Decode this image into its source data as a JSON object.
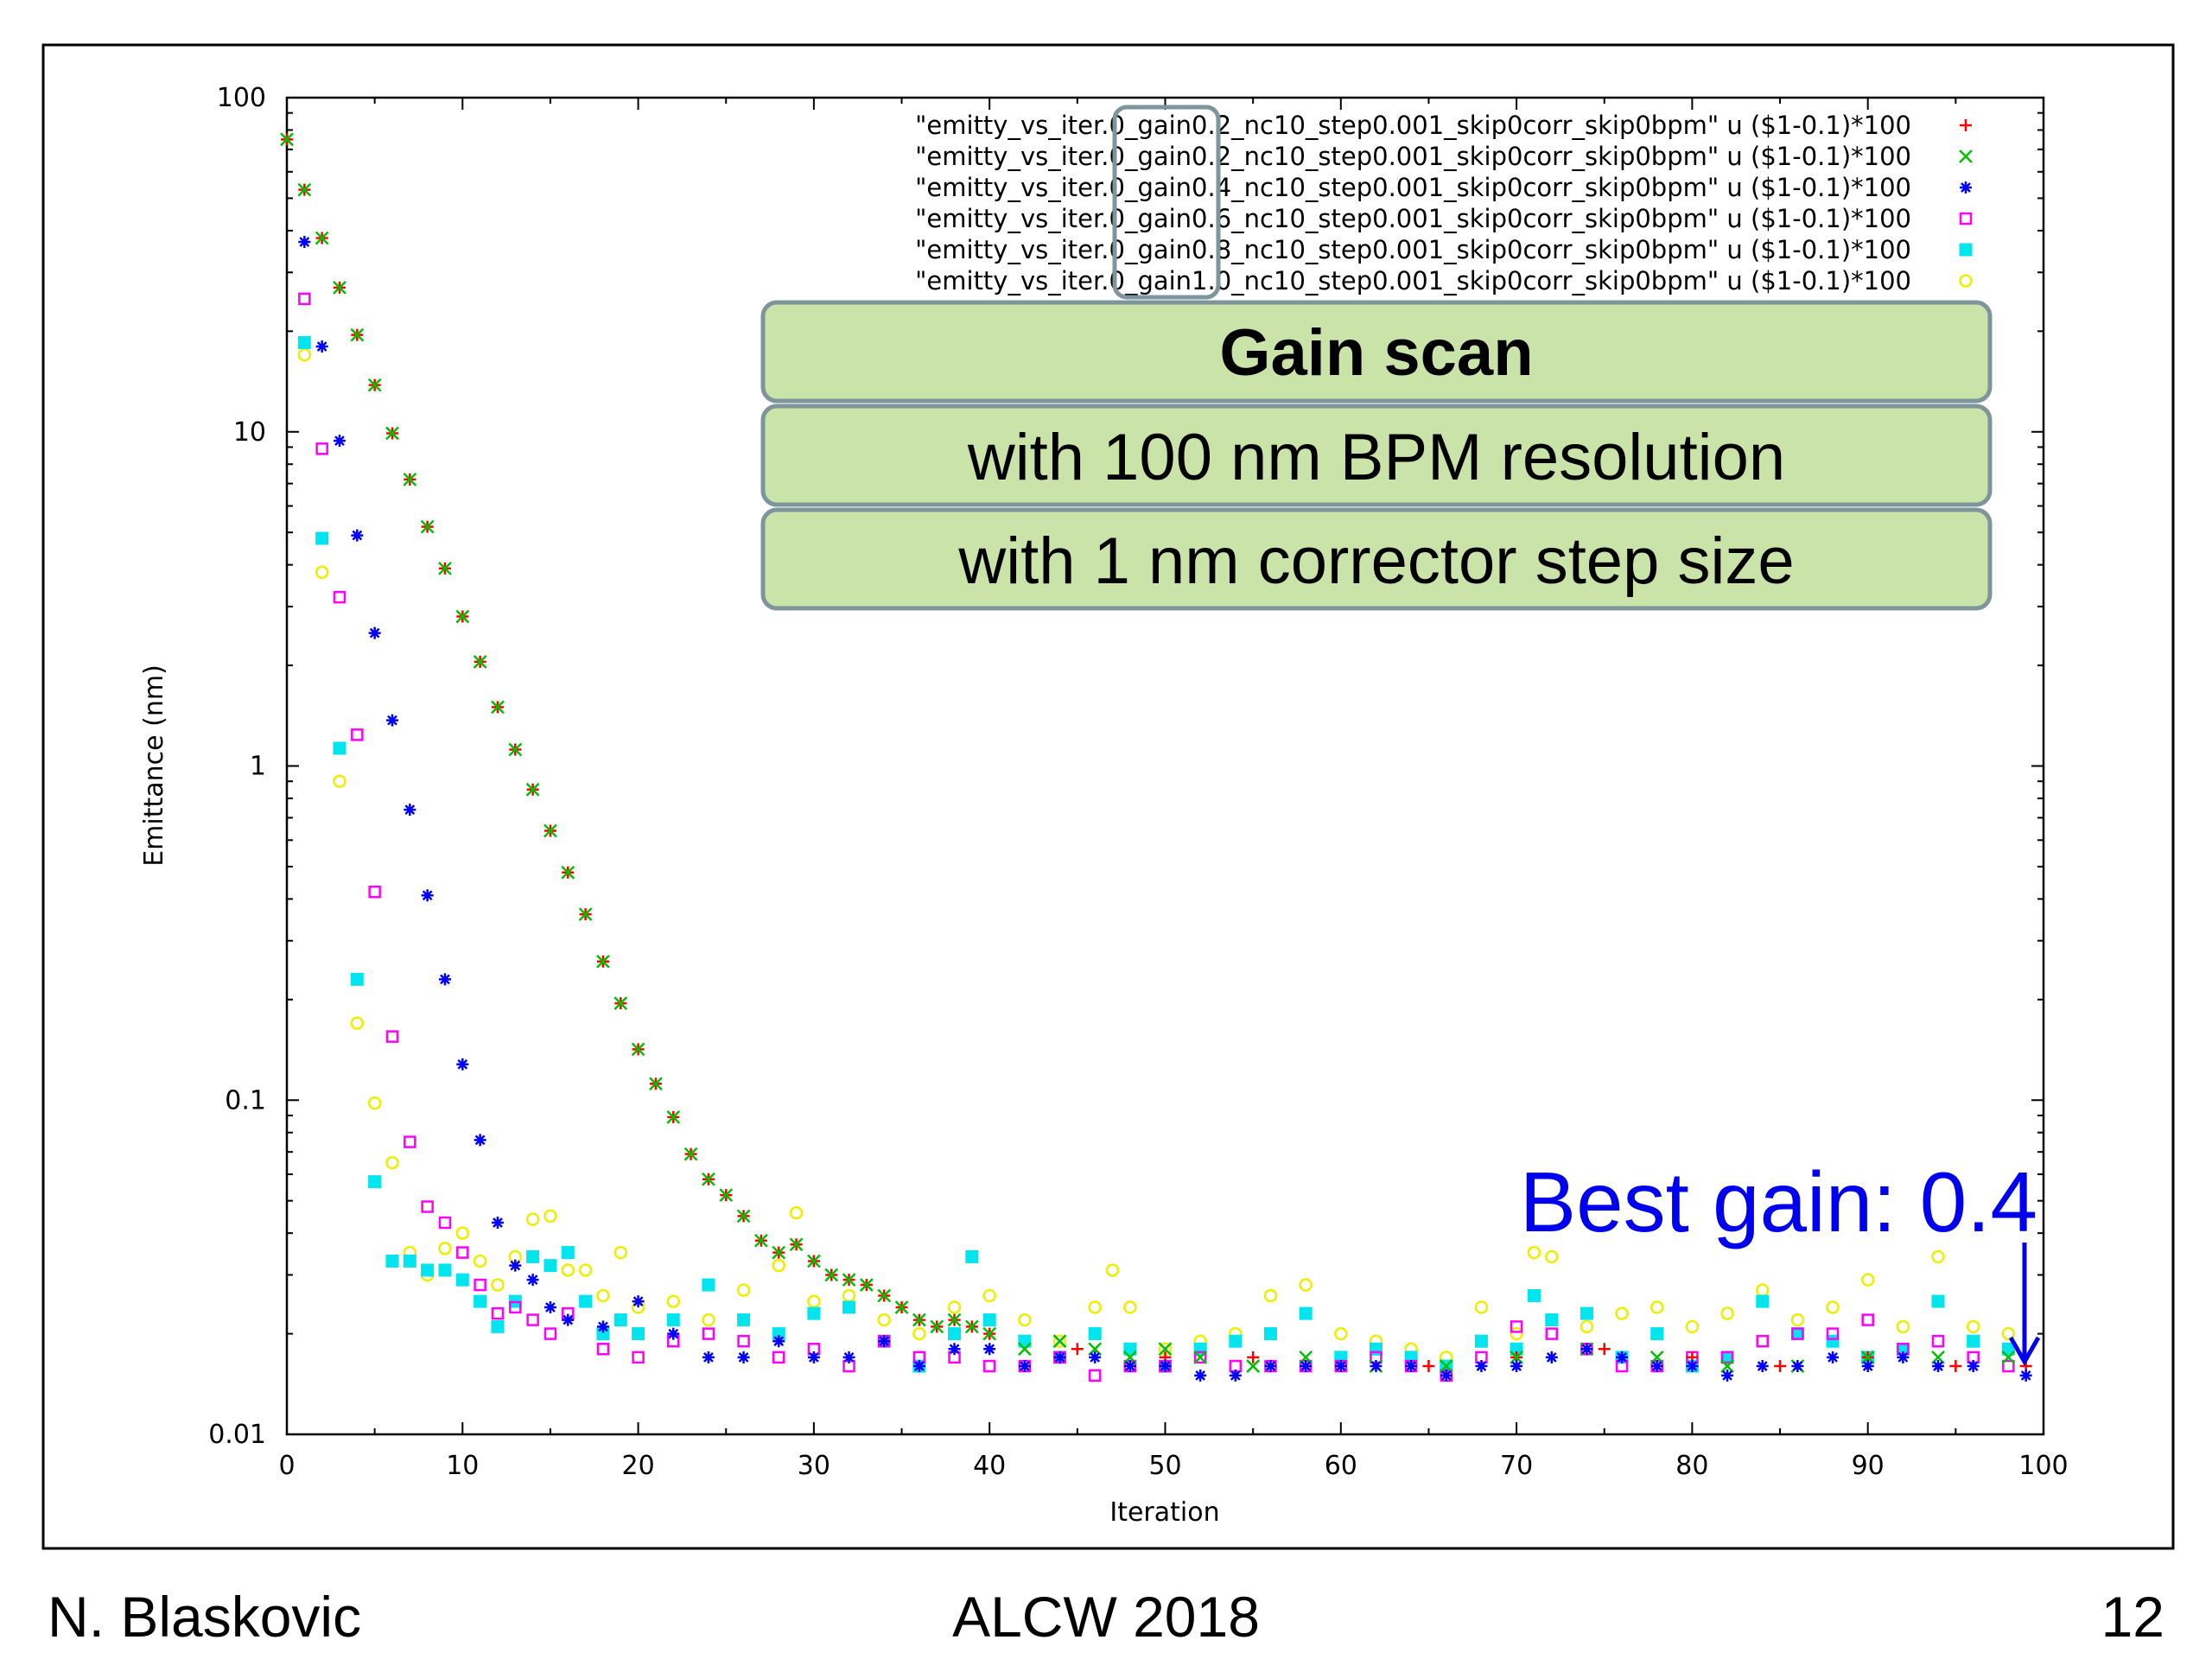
{
  "slide": {
    "author": "N. Blaskovic",
    "event": "ALCW 2018",
    "page_number": "12"
  },
  "callout_boxes": [
    "Gain scan",
    "with 100 nm BPM resolution",
    "with 1 nm corrector step size"
  ],
  "annotation": {
    "text": "Best gain: 0.4",
    "color": "#0000ee"
  },
  "colors": {
    "box_fill": "#c9e3a8",
    "box_border": "#7f959c",
    "highlight_border": "#7f959c"
  },
  "chart_data": {
    "type": "scatter",
    "xlabel": "Iteration",
    "ylabel": "Emittance (nm)",
    "xlim": [
      0,
      100
    ],
    "ylim": [
      0.01,
      100
    ],
    "y_scale": "log",
    "x_ticks": [
      "0",
      "10",
      "20",
      "30",
      "40",
      "50",
      "60",
      "70",
      "80",
      "90",
      "100"
    ],
    "y_ticks": [
      "0.01",
      "0.1",
      "1",
      "10",
      "100"
    ],
    "legend_position": "top-right",
    "series": [
      {
        "name": "\"emitty_vs_iter.0_gain0.2_nc10_step0.001_skip0corr_skip0bpm\" u ($1-0.1)*100",
        "marker": "plus",
        "color": "#ff0000",
        "x": [
          0,
          1,
          2,
          3,
          4,
          5,
          6,
          7,
          8,
          9,
          10,
          11,
          12,
          13,
          14,
          15,
          16,
          17,
          18,
          19,
          20,
          21,
          22,
          23,
          24,
          25,
          26,
          27,
          28,
          29,
          30,
          31,
          32,
          33,
          34,
          35,
          36,
          37,
          38,
          39,
          40,
          45,
          50,
          55,
          60,
          65,
          70,
          75,
          80,
          85,
          90,
          95,
          99
        ],
        "y": [
          75,
          53,
          38,
          27,
          19.5,
          13.8,
          9.9,
          7.2,
          5.2,
          3.9,
          2.8,
          2.05,
          1.5,
          1.12,
          0.85,
          0.64,
          0.48,
          0.36,
          0.26,
          0.195,
          0.142,
          0.112,
          0.089,
          0.069,
          0.058,
          0.052,
          0.045,
          0.038,
          0.035,
          0.037,
          0.033,
          0.03,
          0.029,
          0.028,
          0.026,
          0.024,
          0.022,
          0.021,
          0.022,
          0.021,
          0.02,
          0.018,
          0.017,
          0.017,
          0.016,
          0.016,
          0.017,
          0.018,
          0.017,
          0.016,
          0.017,
          0.016,
          0.016
        ]
      },
      {
        "name": "\"emitty_vs_iter.0_gain0.2_nc10_step0.001_skip0corr_skip0bpm\" u ($1-0.1)*100",
        "marker": "cross",
        "color": "#00c000",
        "x": [
          0,
          1,
          2,
          3,
          4,
          5,
          6,
          7,
          8,
          9,
          10,
          11,
          12,
          13,
          14,
          15,
          16,
          17,
          18,
          19,
          20,
          21,
          22,
          23,
          24,
          25,
          26,
          27,
          28,
          29,
          30,
          31,
          32,
          33,
          34,
          35,
          36,
          37,
          38,
          39,
          40,
          42,
          44,
          46,
          48,
          50,
          52,
          55,
          58,
          62,
          66,
          70,
          74,
          78,
          82,
          86,
          90,
          94,
          98
        ],
        "y": [
          75,
          53,
          38,
          27,
          19.5,
          13.8,
          9.9,
          7.2,
          5.2,
          3.9,
          2.8,
          2.05,
          1.5,
          1.12,
          0.85,
          0.64,
          0.48,
          0.36,
          0.26,
          0.195,
          0.142,
          0.112,
          0.089,
          0.069,
          0.058,
          0.052,
          0.045,
          0.038,
          0.035,
          0.037,
          0.033,
          0.03,
          0.029,
          0.028,
          0.026,
          0.024,
          0.022,
          0.021,
          0.022,
          0.021,
          0.02,
          0.018,
          0.019,
          0.018,
          0.017,
          0.018,
          0.017,
          0.016,
          0.017,
          0.016,
          0.016,
          0.017,
          0.018,
          0.017,
          0.016,
          0.016,
          0.017,
          0.017,
          0.017
        ]
      },
      {
        "name": "\"emitty_vs_iter.0_gain0.4_nc10_step0.001_skip0corr_skip0bpm\" u ($1-0.1)*100",
        "marker": "star",
        "color": "#0000ff",
        "x": [
          1,
          2,
          3,
          4,
          5,
          6,
          7,
          8,
          9,
          10,
          11,
          12,
          13,
          14,
          15,
          16,
          18,
          20,
          22,
          24,
          26,
          28,
          30,
          32,
          34,
          36,
          38,
          40,
          42,
          44,
          46,
          48,
          50,
          52,
          54,
          56,
          58,
          60,
          62,
          64,
          66,
          68,
          70,
          72,
          74,
          76,
          78,
          80,
          82,
          84,
          86,
          88,
          90,
          92,
          94,
          96,
          99
        ],
        "y": [
          37,
          18,
          9.4,
          4.9,
          2.5,
          1.37,
          0.74,
          0.41,
          0.23,
          0.128,
          0.076,
          0.043,
          0.032,
          0.029,
          0.024,
          0.022,
          0.021,
          0.025,
          0.02,
          0.017,
          0.017,
          0.019,
          0.017,
          0.017,
          0.019,
          0.016,
          0.018,
          0.018,
          0.016,
          0.017,
          0.017,
          0.016,
          0.016,
          0.015,
          0.015,
          0.016,
          0.016,
          0.016,
          0.016,
          0.016,
          0.015,
          0.016,
          0.016,
          0.017,
          0.018,
          0.017,
          0.016,
          0.016,
          0.015,
          0.016,
          0.016,
          0.017,
          0.016,
          0.017,
          0.016,
          0.016,
          0.015
        ]
      },
      {
        "name": "\"emitty_vs_iter.0_gain0.6_nc10_step0.001_skip0corr_skip0bpm\" u ($1-0.1)*100",
        "marker": "open-square",
        "color": "#ff00ff",
        "x": [
          1,
          2,
          3,
          4,
          5,
          6,
          7,
          8,
          9,
          10,
          11,
          12,
          13,
          14,
          15,
          16,
          18,
          20,
          22,
          24,
          26,
          28,
          30,
          32,
          34,
          36,
          38,
          40,
          42,
          44,
          46,
          48,
          50,
          52,
          54,
          56,
          58,
          60,
          62,
          64,
          66,
          68,
          70,
          72,
          74,
          76,
          78,
          80,
          82,
          84,
          86,
          88,
          90,
          92,
          94,
          96,
          98
        ],
        "y": [
          25,
          8.9,
          3.2,
          1.24,
          0.42,
          0.155,
          0.075,
          0.048,
          0.043,
          0.035,
          0.028,
          0.023,
          0.024,
          0.022,
          0.02,
          0.023,
          0.018,
          0.017,
          0.019,
          0.02,
          0.019,
          0.017,
          0.018,
          0.016,
          0.019,
          0.017,
          0.017,
          0.016,
          0.016,
          0.017,
          0.015,
          0.016,
          0.016,
          0.017,
          0.016,
          0.016,
          0.016,
          0.016,
          0.017,
          0.016,
          0.015,
          0.017,
          0.021,
          0.02,
          0.018,
          0.016,
          0.016,
          0.017,
          0.017,
          0.019,
          0.02,
          0.02,
          0.022,
          0.018,
          0.019,
          0.017,
          0.016
        ]
      },
      {
        "name": "\"emitty_vs_iter.0_gain0.8_nc10_step0.001_skip0corr_skip0bpm\" u ($1-0.1)*100",
        "marker": "filled-square",
        "color": "#00e5ee",
        "x": [
          1,
          2,
          3,
          4,
          5,
          6,
          7,
          8,
          9,
          10,
          11,
          12,
          13,
          14,
          15,
          16,
          17,
          18,
          19,
          20,
          22,
          24,
          26,
          28,
          30,
          32,
          34,
          36,
          38,
          39,
          40,
          42,
          44,
          46,
          48,
          50,
          52,
          54,
          56,
          58,
          60,
          62,
          64,
          66,
          68,
          70,
          71,
          72,
          74,
          76,
          78,
          80,
          82,
          84,
          86,
          88,
          90,
          92,
          94,
          96,
          98
        ],
        "y": [
          18.5,
          4.8,
          1.13,
          0.23,
          0.057,
          0.033,
          0.033,
          0.031,
          0.031,
          0.029,
          0.025,
          0.021,
          0.025,
          0.034,
          0.032,
          0.035,
          0.025,
          0.02,
          0.022,
          0.02,
          0.022,
          0.028,
          0.022,
          0.02,
          0.023,
          0.024,
          0.019,
          0.016,
          0.02,
          0.034,
          0.022,
          0.019,
          0.017,
          0.02,
          0.018,
          0.016,
          0.018,
          0.019,
          0.02,
          0.023,
          0.017,
          0.018,
          0.017,
          0.016,
          0.019,
          0.018,
          0.026,
          0.022,
          0.023,
          0.017,
          0.02,
          0.016,
          0.017,
          0.025,
          0.02,
          0.019,
          0.017,
          0.018,
          0.025,
          0.019,
          0.018
        ]
      },
      {
        "name": "\"emitty_vs_iter.0_gain1.0_nc10_step0.001_skip0corr_skip0bpm\" u ($1-0.1)*100",
        "marker": "open-circle",
        "color": "#eeee00",
        "x": [
          1,
          2,
          3,
          4,
          5,
          6,
          7,
          8,
          9,
          10,
          11,
          12,
          13,
          14,
          15,
          16,
          17,
          18,
          19,
          20,
          22,
          24,
          26,
          28,
          29,
          30,
          32,
          34,
          36,
          38,
          40,
          42,
          44,
          46,
          47,
          48,
          50,
          52,
          54,
          56,
          58,
          60,
          62,
          64,
          66,
          68,
          70,
          71,
          72,
          74,
          76,
          78,
          80,
          82,
          84,
          86,
          88,
          90,
          92,
          94,
          96,
          98
        ],
        "y": [
          17,
          3.8,
          0.9,
          0.17,
          0.098,
          0.065,
          0.035,
          0.03,
          0.036,
          0.04,
          0.033,
          0.028,
          0.034,
          0.044,
          0.045,
          0.031,
          0.031,
          0.026,
          0.035,
          0.024,
          0.025,
          0.022,
          0.027,
          0.032,
          0.046,
          0.025,
          0.026,
          0.022,
          0.02,
          0.024,
          0.026,
          0.022,
          0.019,
          0.024,
          0.031,
          0.024,
          0.018,
          0.019,
          0.02,
          0.026,
          0.028,
          0.02,
          0.019,
          0.018,
          0.017,
          0.024,
          0.02,
          0.035,
          0.034,
          0.021,
          0.023,
          0.024,
          0.021,
          0.023,
          0.027,
          0.022,
          0.024,
          0.029,
          0.021,
          0.034,
          0.021,
          0.02
        ]
      }
    ],
    "highlighted_legend_tokens": [
      "gain0.2",
      "gain0.2",
      "gain0.4",
      "gain0.6",
      "gain0.8",
      "gain1.0"
    ]
  }
}
